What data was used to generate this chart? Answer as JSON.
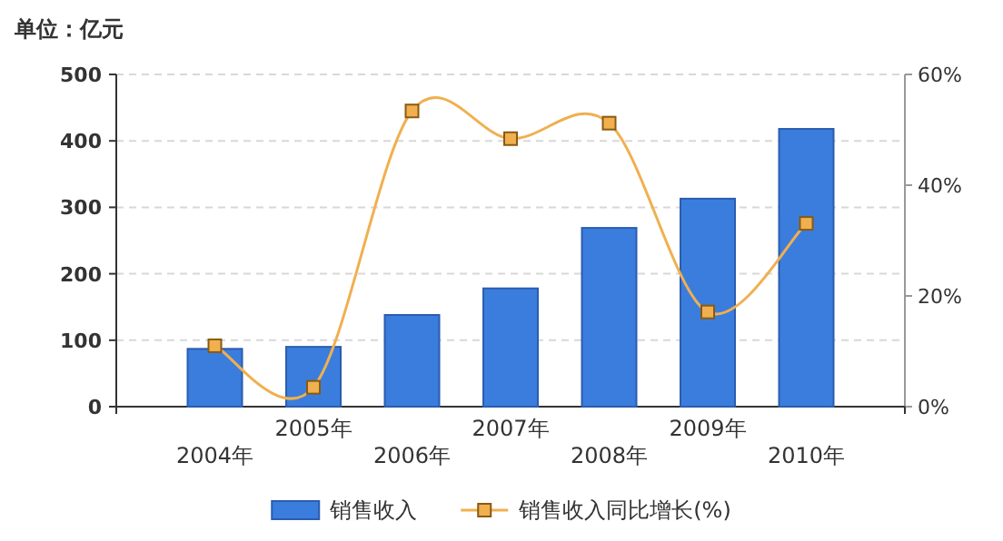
{
  "chart_data": {
    "type": "bar",
    "ylabel": "单位：亿元",
    "categories": [
      "2004年",
      "2005年",
      "2006年",
      "2007年",
      "2008年",
      "2009年",
      "2010年"
    ],
    "series": [
      {
        "name": "销售收入",
        "color": "#3b7ddd",
        "values": [
          87,
          90,
          138,
          178,
          269,
          313,
          418
        ]
      },
      {
        "name": "销售收入同比增长(%)",
        "type": "line",
        "axis": "y2",
        "color": "#f0b050",
        "marker": "square",
        "values": [
          11.0,
          3.5,
          53.4,
          48.4,
          51.2,
          17.1,
          33.1
        ]
      }
    ],
    "ylim": [
      0,
      500
    ],
    "yticks": [
      0,
      100,
      200,
      300,
      400,
      500
    ],
    "y2lim": [
      0,
      60
    ],
    "y2ticks": [
      {
        "value": 0,
        "label": "0%"
      },
      {
        "value": 20,
        "label": "20%"
      },
      {
        "value": 40,
        "label": "40%"
      },
      {
        "value": 60,
        "label": "60%"
      }
    ],
    "grid": "y",
    "legend": "bottom"
  }
}
